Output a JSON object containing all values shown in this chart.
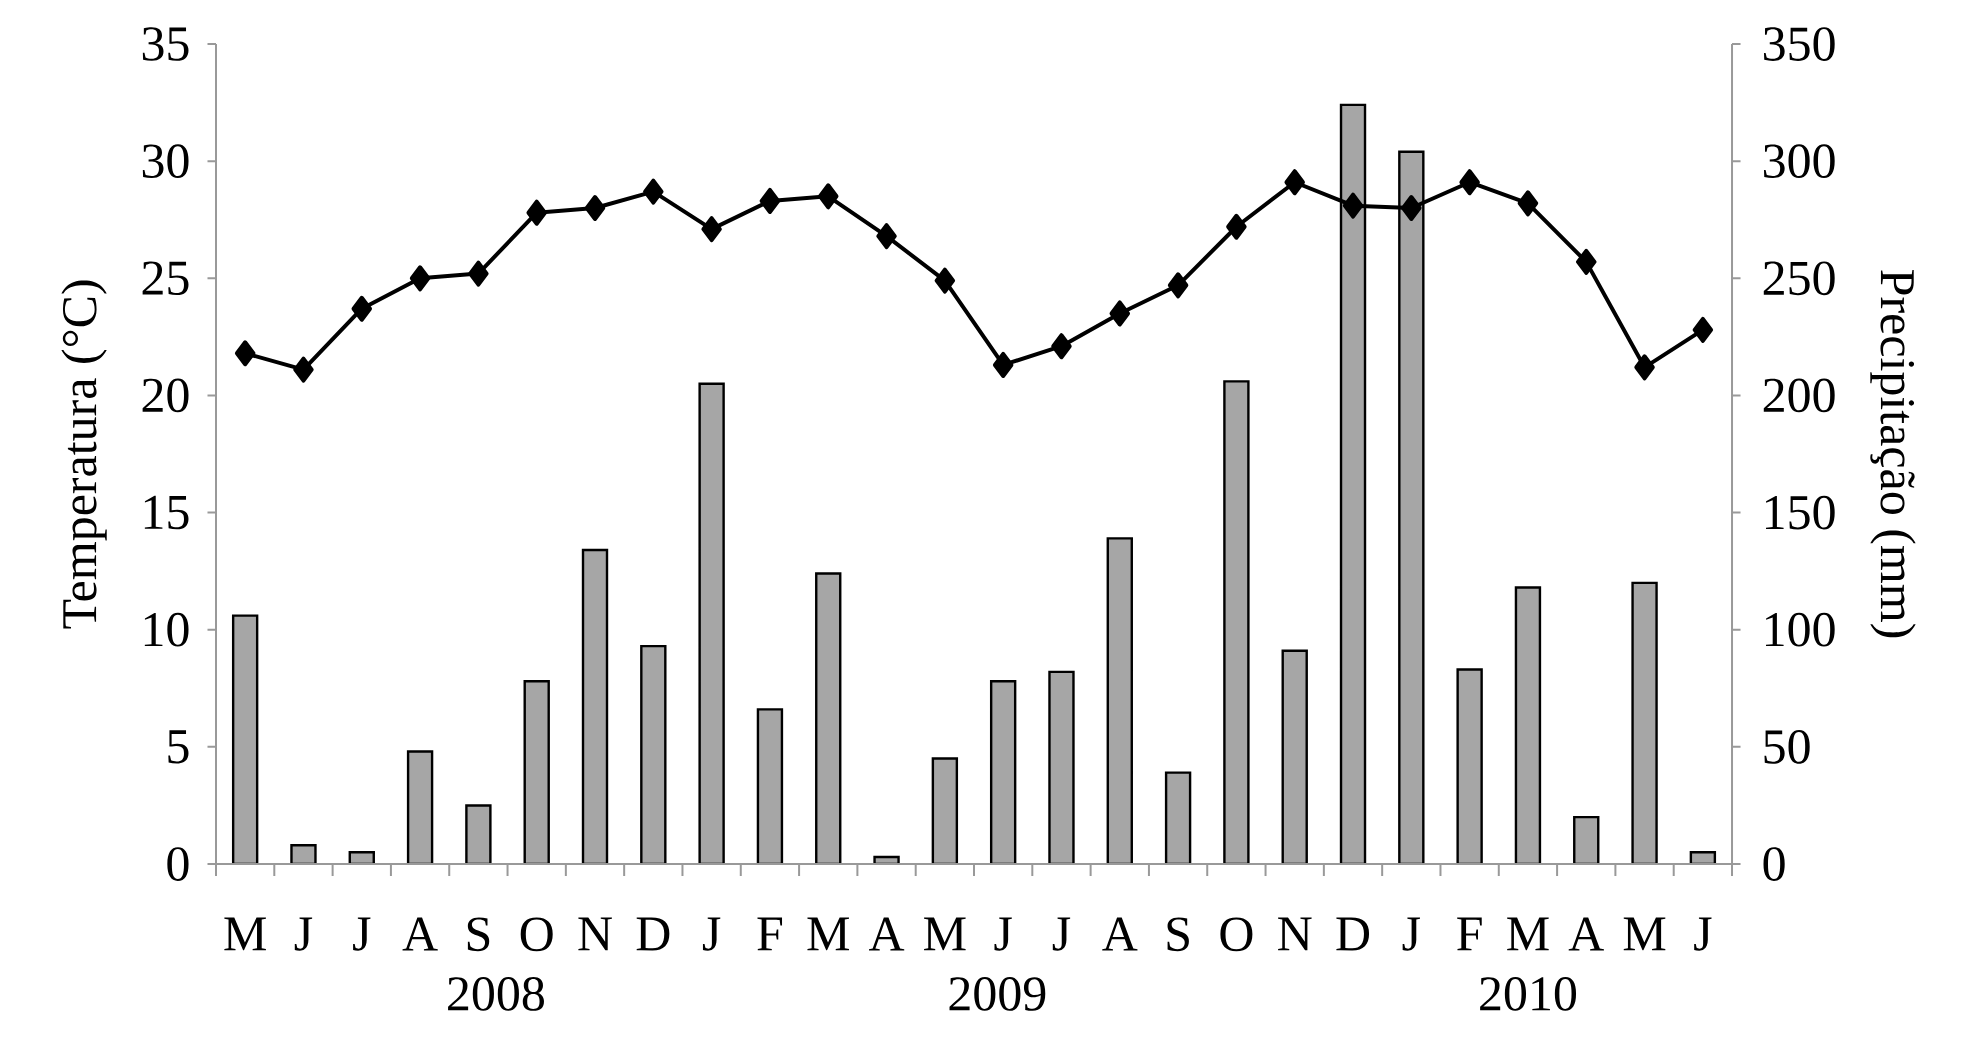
{
  "chart_data": {
    "type": "bar",
    "categories": [
      "M",
      "J",
      "J",
      "A",
      "S",
      "O",
      "N",
      "D",
      "J",
      "F",
      "M",
      "A",
      "M",
      "J",
      "J",
      "A",
      "S",
      "O",
      "N",
      "D",
      "J",
      "F",
      "M",
      "A",
      "M",
      "J"
    ],
    "series": [
      {
        "axis": "y2",
        "color": "#a6a6a6",
        "values": [
          106,
          8,
          5,
          48,
          25,
          78,
          134,
          93,
          205,
          66,
          124,
          3,
          45,
          78,
          82,
          139,
          39,
          206,
          91,
          324,
          304,
          83,
          118,
          20,
          120,
          5
        ]
      },
      {
        "type": "line",
        "color": "#000000",
        "values": [
          21.8,
          21.1,
          23.7,
          25.0,
          25.2,
          27.8,
          28.0,
          28.7,
          27.1,
          28.3,
          28.5,
          26.8,
          24.9,
          21.3,
          22.1,
          23.5,
          24.7,
          27.2,
          29.1,
          28.1,
          28.0,
          29.1,
          28.2,
          25.7,
          21.2,
          22.8
        ]
      }
    ],
    "marker": "diamond",
    "ylabel": "Temperatura (°C)",
    "y2label": "Precipitação (mm)",
    "ylim": [
      0,
      35
    ],
    "yticks": [
      0,
      5,
      10,
      15,
      20,
      25,
      30,
      35
    ],
    "y2lim": [
      0,
      350
    ],
    "y2ticks": [
      0,
      50,
      100,
      150,
      200,
      250,
      300,
      350
    ],
    "annotations": [
      "2008",
      "2009",
      "2010"
    ],
    "grid": false
  }
}
